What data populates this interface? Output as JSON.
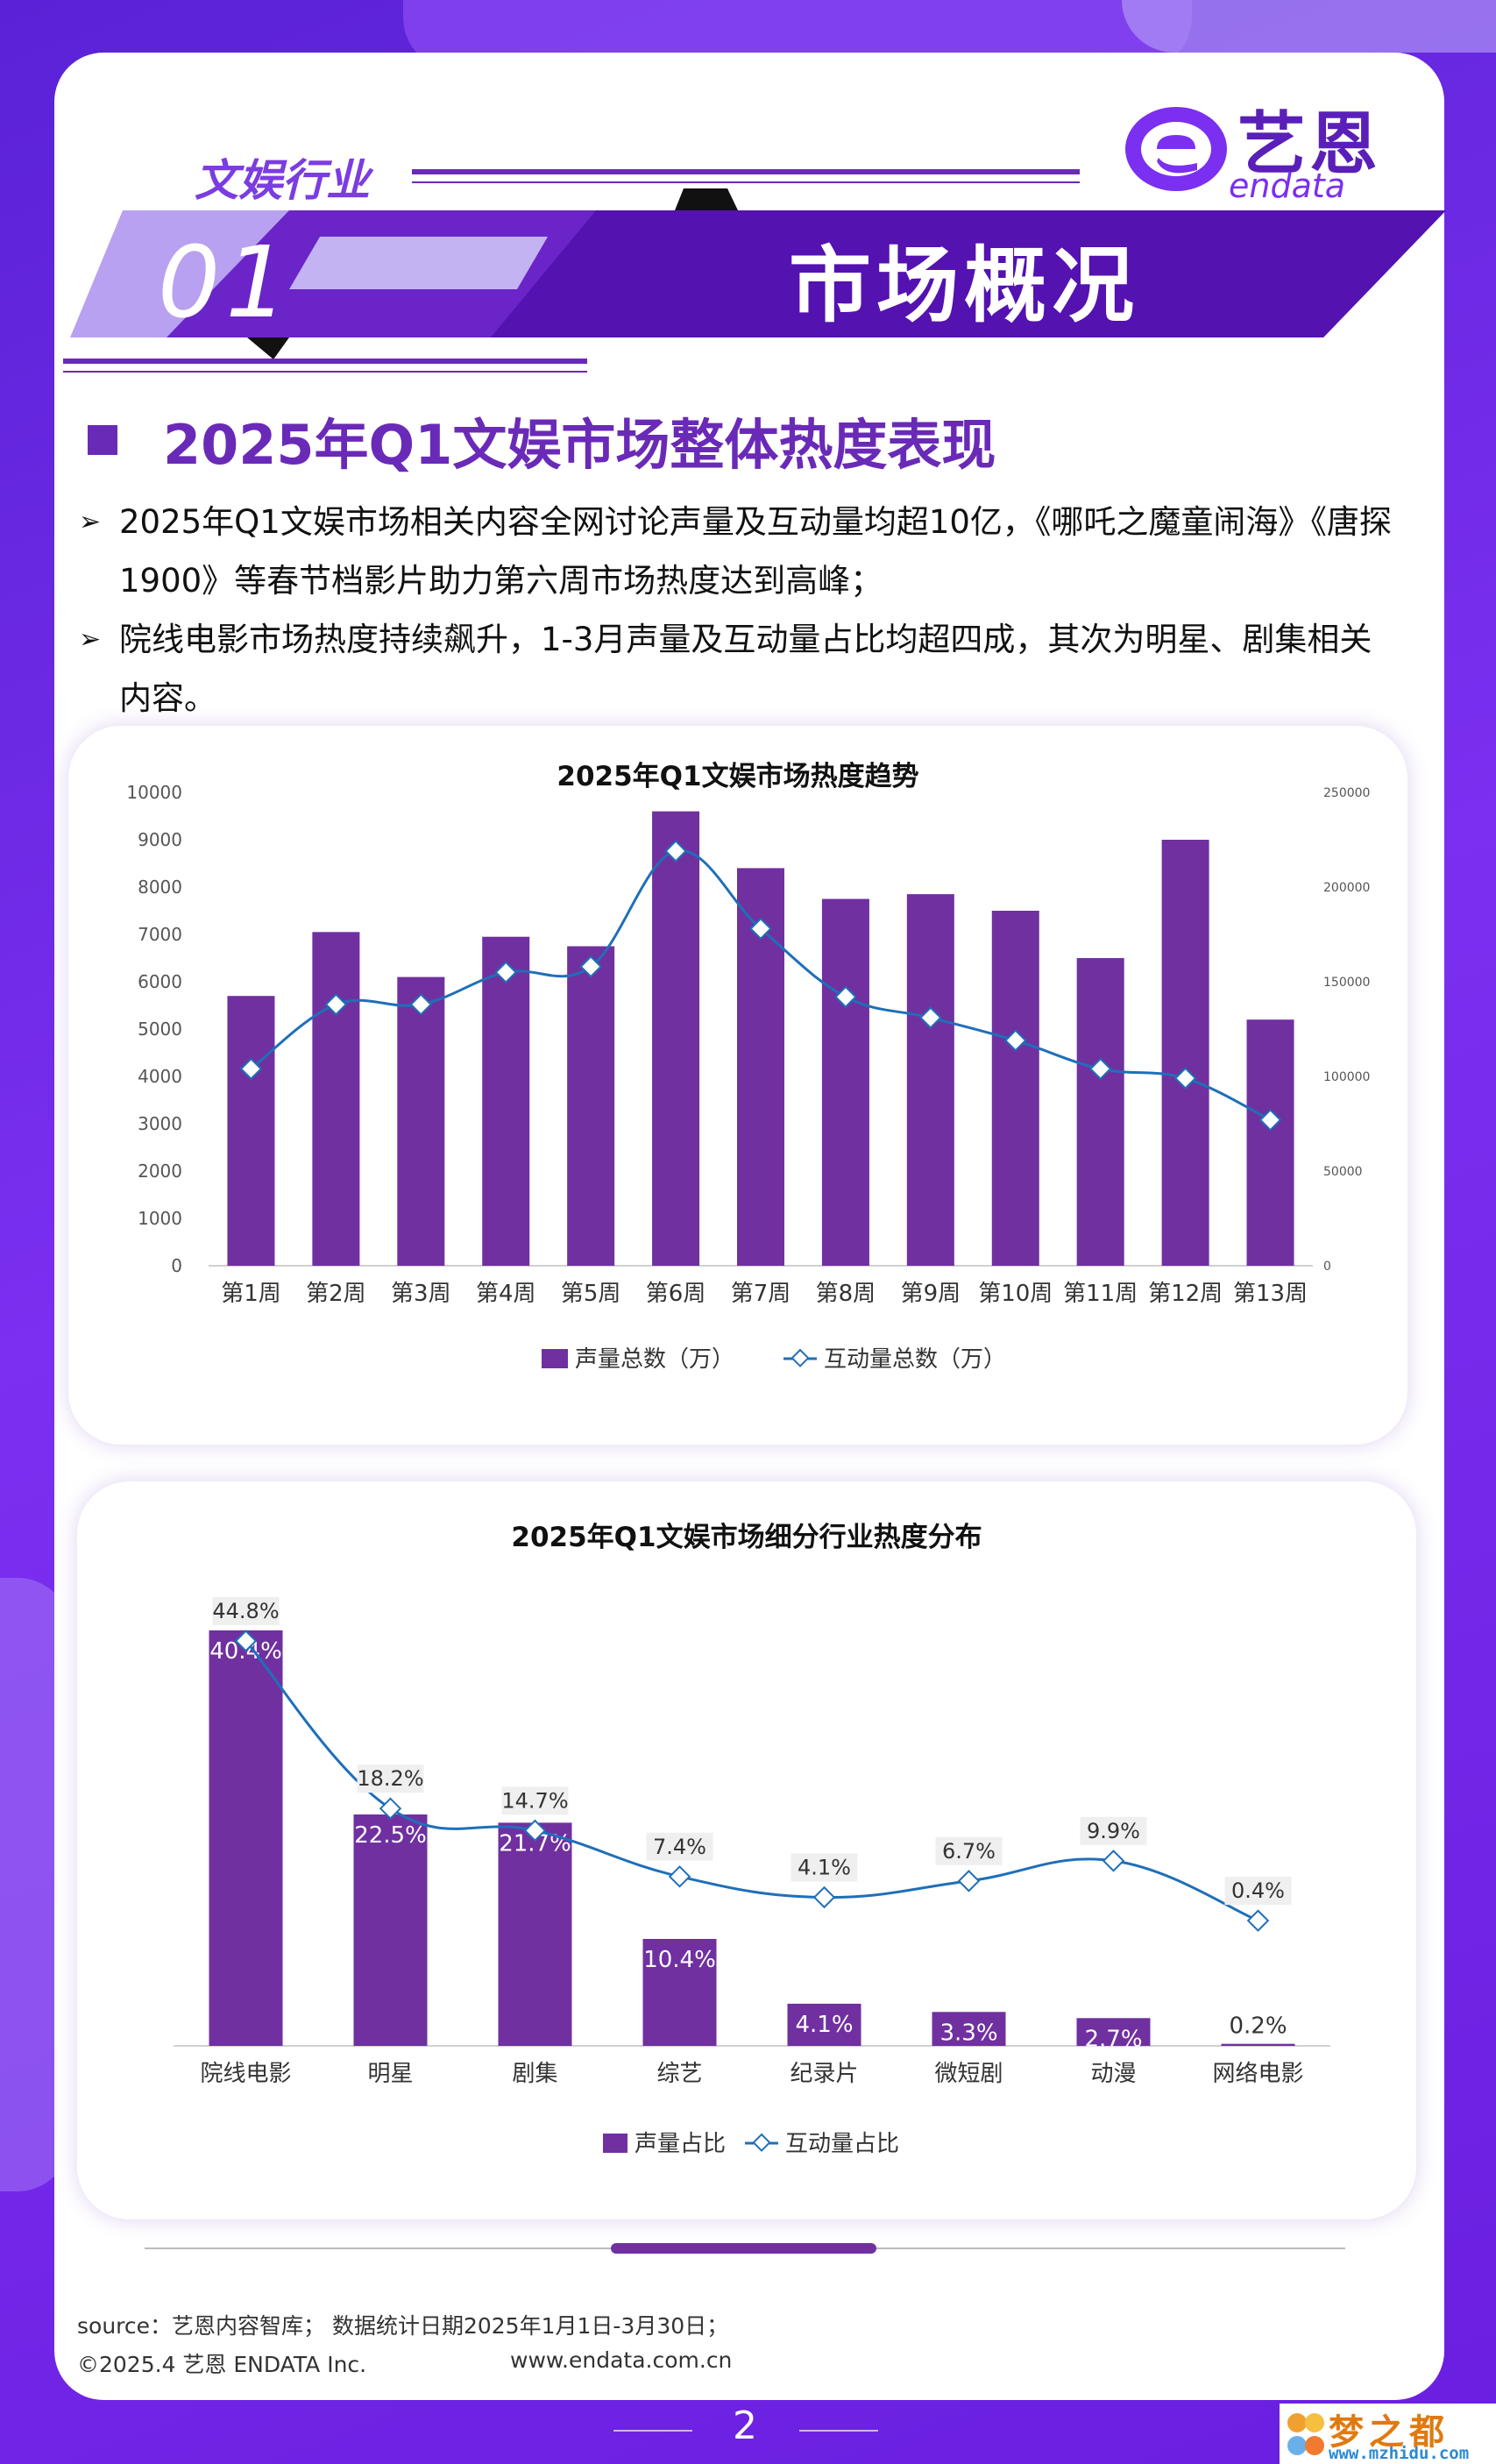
{
  "header": {
    "brand_cn": "艺恩",
    "brand_en": "endata",
    "section_tag": "文娱行业",
    "section_number": "01",
    "section_title": "市场概况"
  },
  "heading": "2025年Q1文娱市场整体热度表现",
  "bullets": [
    "2025年Q1文娱市场相关内容全网讨论声量及互动量均超10亿，《哪吒之魔童闹海》《唐探1900》等春节档影片助力第六周市场热度达到高峰；",
    "院线电影市场热度持续飙升，1-3月声量及互动量占比均超四成，其次为明星、剧集相关内容。"
  ],
  "chart_data": [
    {
      "type": "bar",
      "title": "2025年Q1文娱市场热度趋势",
      "categories": [
        "第1周",
        "第2周",
        "第3周",
        "第4周",
        "第5周",
        "第6周",
        "第7周",
        "第8周",
        "第9周",
        "第10周",
        "第11周",
        "第12周",
        "第13周"
      ],
      "series": [
        {
          "name": "声量总数（万）",
          "type": "bar",
          "axis": "left",
          "values": [
            5700,
            7050,
            6100,
            6950,
            6750,
            9600,
            8400,
            7750,
            7850,
            7500,
            6500,
            9000,
            5200
          ]
        },
        {
          "name": "互动量总数（万）",
          "type": "line",
          "axis": "right",
          "values": [
            104000,
            138000,
            138000,
            155000,
            158000,
            219000,
            178000,
            142000,
            131000,
            119000,
            104000,
            99000,
            77000
          ]
        }
      ],
      "ylim": [
        0,
        10000
      ],
      "yticks": [
        "0",
        "1000",
        "2000",
        "3000",
        "4000",
        "5000",
        "6000",
        "7000",
        "8000",
        "9000",
        "10000"
      ],
      "y2lim": [
        0,
        250000
      ],
      "y2ticks": [
        "0",
        "50000",
        "100000",
        "150000",
        "200000",
        "250000"
      ],
      "legend": "bottom",
      "colors": {
        "bar": "#7030a0",
        "line": "#1f6fb8"
      }
    },
    {
      "type": "bar",
      "title": "2025年Q1文娱市场细分行业热度分布",
      "categories": [
        "院线电影",
        "明星",
        "剧集",
        "综艺",
        "纪录片",
        "微短剧",
        "动漫",
        "网络电影"
      ],
      "series": [
        {
          "name": "声量占比",
          "type": "bar",
          "values": [
            40.4,
            22.5,
            21.7,
            10.4,
            4.1,
            3.3,
            2.7,
            0.2
          ],
          "labels": [
            "40.4%",
            "22.5%",
            "21.7%",
            "10.4%",
            "4.1%",
            "3.3%",
            "2.7%",
            "0.2%"
          ]
        },
        {
          "name": "互动量占比",
          "type": "line",
          "values": [
            44.8,
            18.2,
            14.7,
            7.4,
            4.1,
            6.7,
            9.9,
            0.4
          ],
          "labels": [
            "44.8%",
            "18.2%",
            "14.7%",
            "7.4%",
            "4.1%",
            "6.7%",
            "9.9%",
            "0.4%"
          ]
        }
      ],
      "legend": "bottom",
      "colors": {
        "bar": "#7030a0",
        "line": "#1f6fb8"
      }
    }
  ],
  "footer": {
    "source": "source：艺恩内容智库； 数据统计日期2025年1月1日-3月30日；",
    "copyright": "©2025.4 艺恩 ENDATA Inc.",
    "url": "www.endata.com.cn",
    "page": "2"
  },
  "watermark": {
    "cn": "梦之都",
    "url": "www.mzhidu.com"
  }
}
